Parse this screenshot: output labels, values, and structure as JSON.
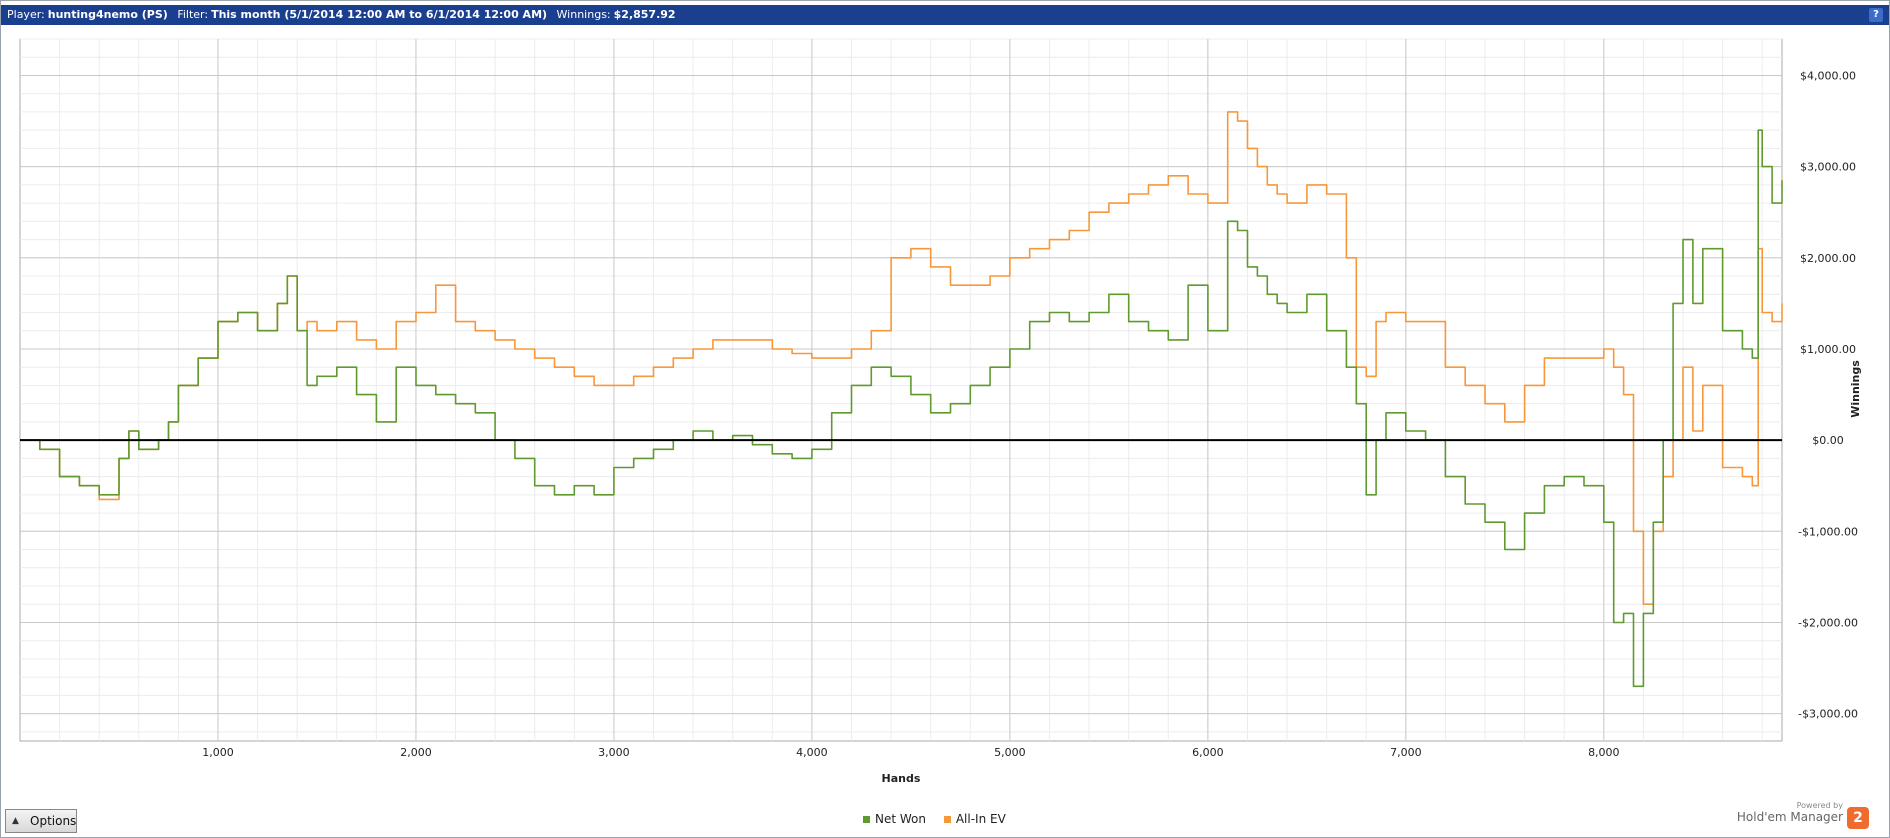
{
  "header": {
    "player_label": "Player:",
    "player_value": "hunting4nemo (PS)",
    "filter_label": "Filter:",
    "filter_value": "This month (5/1/2014 12:00 AM to 6/1/2014 12:00 AM)",
    "winnings_label": "Winnings:",
    "winnings_value": "$2,857.92",
    "help_glyph": "?"
  },
  "options_label": "Options",
  "brand": {
    "powered_by": "Powered by",
    "name": "Hold'em Manager",
    "logo_text": "2"
  },
  "colors": {
    "net_won": "#5f9a2e",
    "all_in_ev": "#f7973a",
    "header_bg": "#1b3f8f",
    "zero_line": "#000000"
  },
  "chart_data": {
    "type": "line",
    "xlabel": "Hands",
    "ylabel": "Winnings",
    "xlim": [
      0,
      8900
    ],
    "ylim": [
      -3300,
      4400
    ],
    "x_ticks": [
      1000,
      2000,
      3000,
      4000,
      5000,
      6000,
      7000,
      8000
    ],
    "x_tick_labels": [
      "1,000",
      "2,000",
      "3,000",
      "4,000",
      "5,000",
      "6,000",
      "7,000",
      "8,000"
    ],
    "y_ticks": [
      4000,
      3000,
      2000,
      1000,
      0,
      -1000,
      -2000,
      -3000
    ],
    "y_tick_labels": [
      "$4,000.00",
      "$3,000.00",
      "$2,000.00",
      "$1,000.00",
      "$0.00",
      "-$1,000.00",
      "-$2,000.00",
      "-$3,000.00"
    ],
    "grid": true,
    "legend_position": "bottom-center",
    "series": [
      {
        "name": "Net Won",
        "color": "#5f9a2e",
        "x": [
          0,
          100,
          200,
          300,
          400,
          500,
          550,
          600,
          700,
          750,
          800,
          900,
          1000,
          1100,
          1200,
          1300,
          1350,
          1400,
          1450,
          1500,
          1600,
          1700,
          1800,
          1900,
          2000,
          2100,
          2200,
          2300,
          2400,
          2500,
          2600,
          2700,
          2800,
          2900,
          3000,
          3100,
          3200,
          3300,
          3400,
          3500,
          3600,
          3700,
          3800,
          3900,
          4000,
          4100,
          4200,
          4300,
          4400,
          4500,
          4600,
          4700,
          4800,
          4900,
          5000,
          5100,
          5200,
          5300,
          5400,
          5500,
          5600,
          5700,
          5800,
          5900,
          6000,
          6100,
          6150,
          6200,
          6250,
          6300,
          6350,
          6400,
          6500,
          6600,
          6700,
          6750,
          6800,
          6850,
          6900,
          7000,
          7100,
          7200,
          7300,
          7400,
          7500,
          7600,
          7700,
          7800,
          7900,
          8000,
          8050,
          8100,
          8150,
          8200,
          8250,
          8300,
          8350,
          8400,
          8450,
          8500,
          8600,
          8700,
          8750,
          8780,
          8800,
          8850,
          8900
        ],
        "values": [
          0,
          -100,
          -400,
          -500,
          -600,
          -200,
          100,
          -100,
          0,
          200,
          600,
          900,
          1300,
          1400,
          1200,
          1500,
          1800,
          1200,
          600,
          700,
          800,
          500,
          200,
          800,
          600,
          500,
          400,
          300,
          0,
          -200,
          -500,
          -600,
          -500,
          -600,
          -300,
          -200,
          -100,
          0,
          100,
          0,
          50,
          -50,
          -150,
          -200,
          -100,
          300,
          600,
          800,
          700,
          500,
          300,
          400,
          600,
          800,
          1000,
          1300,
          1400,
          1300,
          1400,
          1600,
          1300,
          1200,
          1100,
          1700,
          1200,
          2400,
          2300,
          1900,
          1800,
          1600,
          1500,
          1400,
          1600,
          1200,
          800,
          400,
          -600,
          0,
          300,
          100,
          0,
          -400,
          -700,
          -900,
          -1200,
          -800,
          -500,
          -400,
          -500,
          -900,
          -2000,
          -1900,
          -2700,
          -1900,
          -900,
          0,
          1500,
          2200,
          1500,
          2100,
          1200,
          1000,
          900,
          3400,
          3000,
          2600,
          2850
        ]
      },
      {
        "name": "All-In EV",
        "color": "#f7973a",
        "x": [
          0,
          100,
          200,
          300,
          400,
          500,
          550,
          600,
          700,
          750,
          800,
          900,
          1000,
          1100,
          1200,
          1300,
          1350,
          1400,
          1450,
          1500,
          1600,
          1700,
          1800,
          1900,
          2000,
          2100,
          2200,
          2300,
          2400,
          2500,
          2600,
          2700,
          2800,
          2900,
          3000,
          3100,
          3200,
          3300,
          3400,
          3500,
          3600,
          3700,
          3800,
          3900,
          4000,
          4100,
          4200,
          4300,
          4400,
          4500,
          4600,
          4700,
          4800,
          4900,
          5000,
          5100,
          5200,
          5300,
          5400,
          5500,
          5600,
          5700,
          5800,
          5900,
          6000,
          6100,
          6150,
          6200,
          6250,
          6300,
          6350,
          6400,
          6500,
          6600,
          6700,
          6750,
          6800,
          6850,
          6900,
          7000,
          7100,
          7200,
          7300,
          7400,
          7500,
          7600,
          7700,
          7800,
          7900,
          8000,
          8050,
          8100,
          8150,
          8200,
          8250,
          8300,
          8350,
          8400,
          8450,
          8500,
          8600,
          8700,
          8750,
          8780,
          8800,
          8850,
          8900
        ],
        "values": [
          0,
          -100,
          -400,
          -500,
          -650,
          -200,
          100,
          -100,
          0,
          200,
          600,
          900,
          1300,
          1400,
          1200,
          1500,
          1800,
          1200,
          1300,
          1200,
          1300,
          1100,
          1000,
          1300,
          1400,
          1700,
          1300,
          1200,
          1100,
          1000,
          900,
          800,
          700,
          600,
          600,
          700,
          800,
          900,
          1000,
          1100,
          1100,
          1100,
          1000,
          950,
          900,
          900,
          1000,
          1200,
          2000,
          2100,
          1900,
          1700,
          1700,
          1800,
          2000,
          2100,
          2200,
          2300,
          2500,
          2600,
          2700,
          2800,
          2900,
          2700,
          2600,
          3600,
          3500,
          3200,
          3000,
          2800,
          2700,
          2600,
          2800,
          2700,
          2000,
          800,
          700,
          1300,
          1400,
          1300,
          1300,
          800,
          600,
          400,
          200,
          600,
          900,
          900,
          900,
          1000,
          800,
          500,
          -1000,
          -1800,
          -1000,
          -400,
          0,
          800,
          100,
          600,
          -300,
          -400,
          -500,
          2100,
          1400,
          1300,
          1500
        ]
      }
    ]
  }
}
